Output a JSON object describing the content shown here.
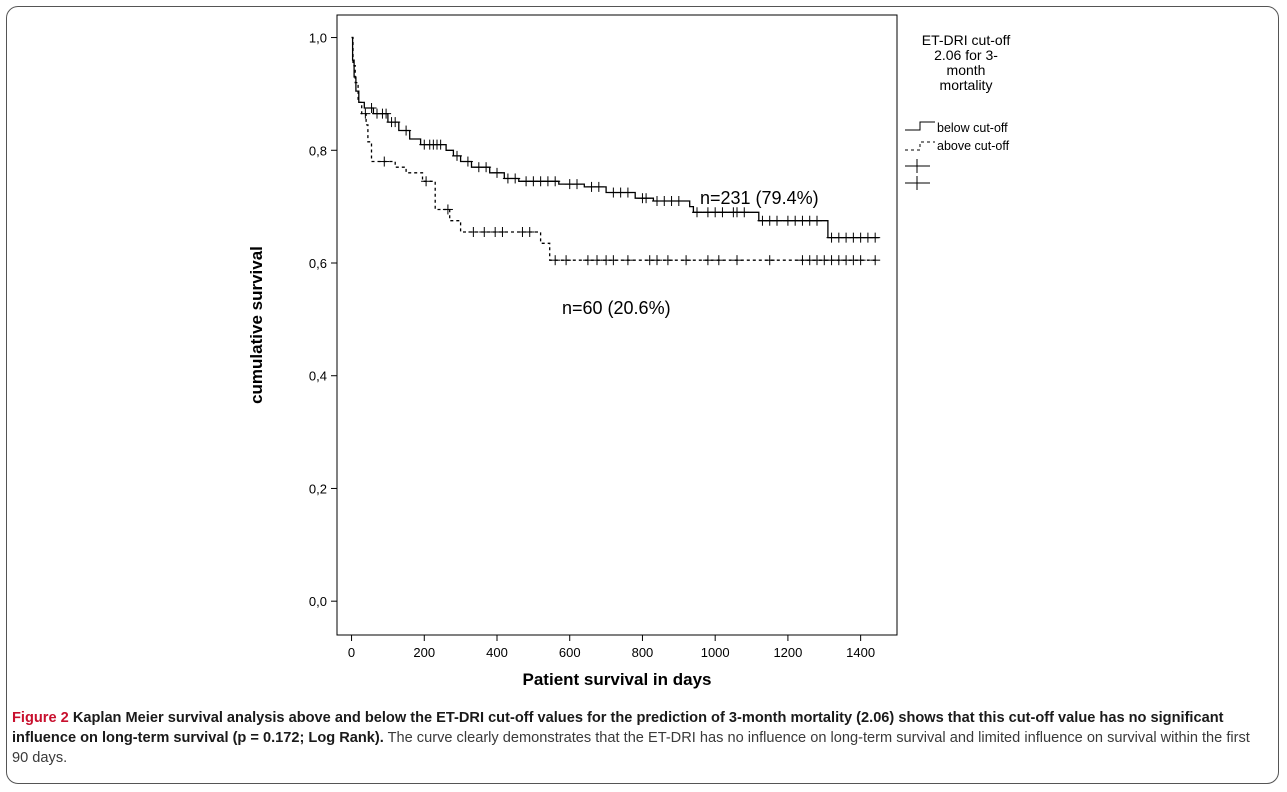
{
  "chart_data": {
    "type": "line",
    "subtype": "kaplan-meier",
    "xlabel": "Patient survival in days",
    "ylabel": "cumulative survival",
    "xlim": [
      -40,
      1500
    ],
    "ylim": [
      -0.06,
      1.04
    ],
    "x_ticks": [
      0,
      200,
      400,
      600,
      800,
      1000,
      1200,
      1400
    ],
    "x_tick_labels": [
      "0",
      "200",
      "400",
      "600",
      "800",
      "1000",
      "1200",
      "1400"
    ],
    "y_ticks": [
      0.0,
      0.2,
      0.4,
      0.6,
      0.8,
      1.0
    ],
    "y_tick_labels": [
      "0,0",
      "0,2",
      "0,4",
      "0,6",
      "0,8",
      "1,0"
    ],
    "grid": false,
    "legend_position": "top-right outside",
    "legend_title": "ET-DRI cut-off 2.06 for 3-month mortality",
    "legend_title_lines": [
      "ET-DRI cut-off",
      "2.06 for 3-",
      "month",
      "mortality"
    ],
    "series": [
      {
        "name": "below cut-off",
        "style": "solid",
        "color": "#000000",
        "annotation": "n=231 (79.4%)",
        "steps": [
          [
            0,
            1.0
          ],
          [
            3,
            0.96
          ],
          [
            7,
            0.93
          ],
          [
            12,
            0.905
          ],
          [
            20,
            0.885
          ],
          [
            35,
            0.875
          ],
          [
            60,
            0.865
          ],
          [
            100,
            0.85
          ],
          [
            130,
            0.835
          ],
          [
            160,
            0.82
          ],
          [
            190,
            0.81
          ],
          [
            260,
            0.8
          ],
          [
            280,
            0.79
          ],
          [
            300,
            0.78
          ],
          [
            330,
            0.77
          ],
          [
            380,
            0.76
          ],
          [
            420,
            0.75
          ],
          [
            460,
            0.745
          ],
          [
            570,
            0.74
          ],
          [
            640,
            0.735
          ],
          [
            700,
            0.725
          ],
          [
            780,
            0.715
          ],
          [
            830,
            0.71
          ],
          [
            930,
            0.7
          ],
          [
            940,
            0.69
          ],
          [
            1120,
            0.675
          ],
          [
            1310,
            0.645
          ],
          [
            1450,
            0.645
          ]
        ],
        "censored": [
          55,
          70,
          85,
          95,
          110,
          120,
          150,
          200,
          215,
          225,
          235,
          245,
          290,
          320,
          350,
          370,
          400,
          430,
          450,
          480,
          500,
          520,
          540,
          560,
          600,
          620,
          660,
          680,
          720,
          740,
          760,
          800,
          810,
          840,
          860,
          880,
          900,
          950,
          980,
          1000,
          1020,
          1050,
          1060,
          1080,
          1130,
          1150,
          1170,
          1200,
          1220,
          1240,
          1260,
          1280,
          1320,
          1340,
          1360,
          1380,
          1400,
          1420,
          1440
        ]
      },
      {
        "name": "above cut-off",
        "style": "dotted",
        "color": "#000000",
        "annotation": "n=60 (20.6%)",
        "steps": [
          [
            0,
            1.0
          ],
          [
            4,
            0.95
          ],
          [
            10,
            0.92
          ],
          [
            18,
            0.885
          ],
          [
            28,
            0.865
          ],
          [
            40,
            0.845
          ],
          [
            45,
            0.815
          ],
          [
            55,
            0.78
          ],
          [
            120,
            0.77
          ],
          [
            150,
            0.76
          ],
          [
            195,
            0.745
          ],
          [
            230,
            0.695
          ],
          [
            270,
            0.675
          ],
          [
            300,
            0.655
          ],
          [
            520,
            0.635
          ],
          [
            545,
            0.605
          ],
          [
            1450,
            0.605
          ]
        ],
        "censored": [
          38,
          90,
          205,
          265,
          335,
          365,
          395,
          415,
          470,
          490,
          560,
          590,
          650,
          675,
          700,
          720,
          760,
          820,
          840,
          870,
          920,
          980,
          1010,
          1060,
          1150,
          1240,
          1260,
          1280,
          1300,
          1320,
          1340,
          1360,
          1380,
          1400,
          1440
        ]
      }
    ]
  },
  "caption": {
    "label": "Figure 2",
    "bold_text": " Kaplan Meier survival analysis above and below the ET-DRI cut-off values for the prediction of 3-month mortality (2.06) shows that this cut-off value has no significant influence on long-term survival (p = 0.172; Log Rank).",
    "text": " The curve clearly demonstrates that the ET-DRI has no influence on long-term survival and limited influence on survival within the first 90 days."
  }
}
